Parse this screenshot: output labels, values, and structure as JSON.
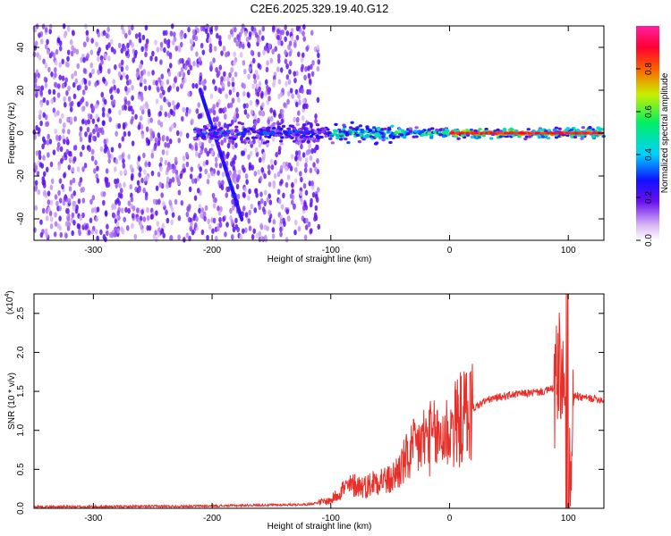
{
  "page": {
    "title": "C2E6.2025.329.19.40.G12"
  },
  "chart_data": [
    {
      "type": "heatmap",
      "title": "C2E6.2025.329.19.40.G12",
      "xlabel": "Height of straight line (km)",
      "ylabel": "Frequency (Hz)",
      "xlim": [
        -350,
        130
      ],
      "ylim": [
        -50,
        50
      ],
      "xticks": [
        -300,
        -200,
        -100,
        0,
        100
      ],
      "yticks": [
        -40,
        -20,
        0,
        20,
        40
      ],
      "x_tick_labels": [
        "-300",
        "-200",
        "-100",
        "0",
        "100"
      ],
      "y_tick_labels": [
        "-40",
        "-20",
        "0",
        "20",
        "40"
      ],
      "colorbar": {
        "label": "Normalized spectral amplitude",
        "range": [
          0,
          1
        ],
        "ticks": [
          0.0,
          0.2,
          0.4,
          0.6,
          0.8
        ],
        "tick_labels": [
          "0.0",
          "0.2",
          "0.4",
          "0.6",
          "0.8"
        ],
        "colormap": "rainbow (white-violet-blue-cyan-green-yellow-red-magenta)"
      },
      "features": {
        "noise_region_x": [
          -350,
          -110
        ],
        "signal_band_center_hz": 0,
        "diagonal_streak": {
          "x": [
            -210,
            -175
          ],
          "y": [
            20,
            -40
          ]
        }
      }
    },
    {
      "type": "line",
      "xlabel": "Height of straight line (km)",
      "ylabel": "SNR (10 * v/v)",
      "y_multiplier_label": "(x10",
      "y_multiplier_exp": "4",
      "y_multiplier_close": ")",
      "xlim": [
        -350,
        130
      ],
      "ylim": [
        0,
        2.75
      ],
      "xticks": [
        -300,
        -200,
        -100,
        0,
        100
      ],
      "yticks": [
        0.0,
        0.5,
        1.0,
        1.5,
        2.0,
        2.5
      ],
      "x_tick_labels": [
        "-300",
        "-200",
        "-100",
        "0",
        "100"
      ],
      "y_tick_labels": [
        "0.0",
        "0.5",
        "1.0",
        "1.5",
        "2.0",
        "2.5"
      ],
      "series": [
        {
          "color": "#e8302a",
          "x": [
            -350,
            -300,
            -200,
            -120,
            -100,
            -90,
            -80,
            -70,
            -60,
            -50,
            -40,
            -30,
            -20,
            -10,
            0,
            10,
            20,
            30,
            40,
            50,
            60,
            70,
            80,
            90,
            95,
            100,
            105,
            110,
            120,
            130
          ],
          "y": [
            0.02,
            0.02,
            0.03,
            0.05,
            0.1,
            0.25,
            0.3,
            0.28,
            0.38,
            0.35,
            0.55,
            0.75,
            0.9,
            0.9,
            1.0,
            1.15,
            1.28,
            1.38,
            1.42,
            1.45,
            1.47,
            1.48,
            1.5,
            1.55,
            1.7,
            0.4,
            1.45,
            1.42,
            1.41,
            1.39
          ]
        }
      ]
    }
  ]
}
